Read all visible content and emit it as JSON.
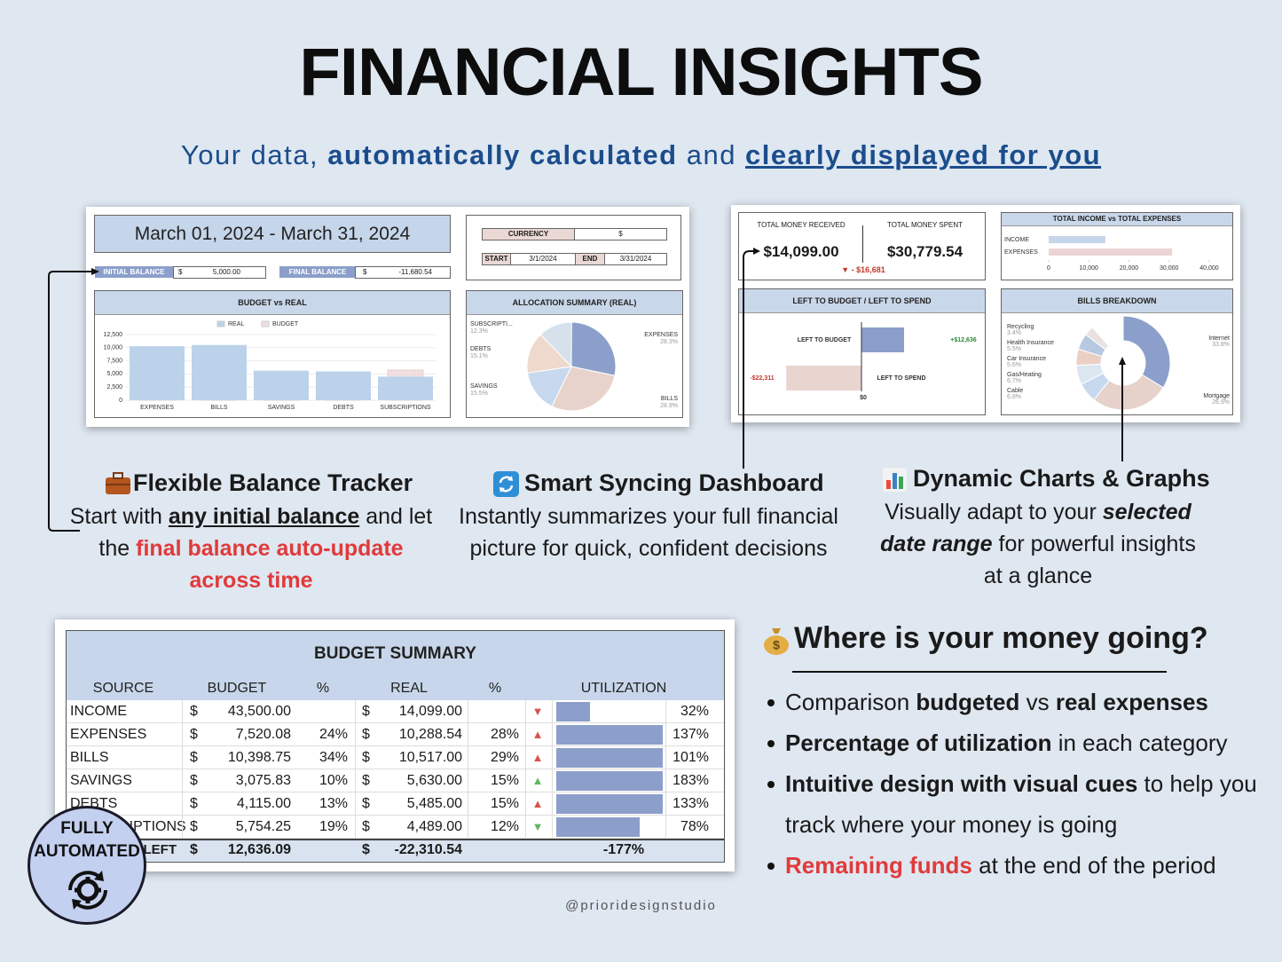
{
  "header": {
    "title": "FINANCIAL INSIGHTS",
    "subtitle": [
      {
        "text": "Your data, ",
        "style": "plain"
      },
      {
        "text": "automatically calculated",
        "style": "bold"
      },
      {
        "text": " and ",
        "style": "plain"
      },
      {
        "text": "clearly displayed for you",
        "style": "bold-underline"
      }
    ]
  },
  "dashboard_left": {
    "date_range": "March 01, 2024 - March 31, 2024",
    "currency_label": "CURRENCY",
    "currency": "$",
    "start_label": "START",
    "start": "3/1/2024",
    "end_label": "END",
    "end": "3/31/2024",
    "initial_balance_label": "INITIAL BALANCE",
    "initial_balance_currency": "$",
    "initial_balance": "5,000.00",
    "final_balance_label": "FINAL BALANCE",
    "final_balance_currency": "$",
    "final_balance": "-11,680.54",
    "budget_chart": {
      "type": "bar",
      "title": "BUDGET vs REAL",
      "categories": [
        "EXPENSES",
        "BILLS",
        "SAVINGS",
        "DEBTS",
        "SUBSCRIPTIONS"
      ],
      "series": [
        {
          "name": "REAL",
          "color": "#bcd2ea",
          "values": [
            10288.54,
            10517,
            5630,
            5485,
            4489
          ]
        },
        {
          "name": "BUDGET",
          "color": "#f1dfdf",
          "values": [
            7520.08,
            10398.75,
            3075.83,
            4115,
            5754.25
          ]
        }
      ],
      "ylim": [
        0,
        12500
      ],
      "yticks": [
        0,
        {
          "value": 2500,
          "label": "2,500"
        },
        {
          "value": 5000,
          "label": "5,000"
        },
        {
          "value": 7500,
          "label": "7,500"
        },
        {
          "value": 10000,
          "label": "10,000"
        },
        {
          "value": 12500,
          "label": "12,500"
        }
      ]
    },
    "allocation_chart": {
      "type": "pie",
      "title": "ALLOCATION SUMMARY (REAL)",
      "categories": [
        "EXPENSES",
        "BILLS",
        "SAVINGS",
        "DEBTS",
        "SUBSCRIPTI..."
      ],
      "values": [
        28.3,
        28.9,
        15.5,
        15.1,
        12.3
      ],
      "value_labels": [
        "28.3%",
        "28.9%",
        "15.5%",
        "15.1%",
        "12.3%"
      ],
      "colors": [
        "#8b9fca",
        "#e8d3cc",
        "#c8d9ef",
        "#efd8cc",
        "#d6e1ec"
      ]
    }
  },
  "dashboard_right": {
    "received_label": "TOTAL MONEY RECEIVED",
    "received": "$14,099.00",
    "spent_label": "TOTAL MONEY SPENT",
    "spent": "$30,779.54",
    "difference": "▼ - $16,681",
    "income_chart": {
      "type": "hbar",
      "title": "TOTAL INCOME vs TOTAL EXPENSES",
      "categories": [
        "INCOME",
        "EXPENSES"
      ],
      "values": [
        14099,
        30779.54
      ],
      "colors": [
        "#c5d5ea",
        "#ecd4d4"
      ],
      "xlim": [
        0,
        40000
      ],
      "xticks": [
        0,
        {
          "value": 10000,
          "label": "10,000"
        },
        {
          "value": 20000,
          "label": "20,000"
        },
        {
          "value": 30000,
          "label": "30,000"
        },
        {
          "value": 40000,
          "label": "40,000"
        }
      ]
    },
    "left_chart": {
      "type": "diverging",
      "title": "LEFT TO BUDGET / LEFT TO SPEND",
      "categories": [
        "LEFT TO BUDGET",
        "LEFT TO SPEND"
      ],
      "values": [
        12636,
        -22311
      ],
      "value_labels": [
        "+$12,636",
        "-$22,311"
      ],
      "colors": [
        "#8b9fca",
        "#e8d5d0"
      ],
      "label_colors": [
        "#2e8b3a",
        "#c0392b"
      ],
      "xlim": [
        -25000,
        15000
      ],
      "xticks": [
        {
          "value": 0,
          "label": "$0"
        }
      ]
    },
    "bills_chart": {
      "type": "donut",
      "title": "BILLS BREAKDOWN",
      "categories": [
        "Internet",
        "Mortgage",
        "Cable",
        "Gas/Heating",
        "Car Insurance",
        "Health Insurance",
        "Recycling"
      ],
      "values": [
        33.8,
        26.9,
        6.8,
        6.7,
        5.6,
        5.5,
        3.4
      ],
      "value_labels": [
        "33.8%",
        "26.9%",
        "6.8%",
        "6.7%",
        "5.6%",
        "5.5%",
        "3.4%"
      ],
      "colors": [
        "#8b9fca",
        "#e6d2cb",
        "#c8d9ef",
        "#dce6f1",
        "#eccfc4",
        "#b7c8e3",
        "#e9e2e0"
      ]
    }
  },
  "features": [
    {
      "title": "Flexible Balance Tracker",
      "body": [
        {
          "text": "Start with ",
          "style": "plain"
        },
        {
          "text": "any initial balance",
          "style": "bold-underline"
        },
        {
          "text": " and let the ",
          "style": "plain"
        },
        {
          "text": "final balance auto-update across time",
          "style": "red"
        }
      ]
    },
    {
      "title": "Smart Syncing Dashboard",
      "body": [
        {
          "text": "Instantly summarizes your full financial picture for quick, confident decisions",
          "style": "plain"
        }
      ]
    },
    {
      "title": "Dynamic Charts & Graphs",
      "body": [
        {
          "text": "Visually adapt to your ",
          "style": "plain"
        },
        {
          "text": "selected date range",
          "style": "bold-italic"
        },
        {
          "text": " for powerful insights at a glance",
          "style": "plain"
        }
      ]
    }
  ],
  "budget_summary": {
    "title": "BUDGET SUMMARY",
    "headers": [
      "SOURCE",
      "BUDGET",
      "%",
      "REAL",
      "%",
      "UTILIZATION"
    ],
    "rows": [
      {
        "source": "INCOME",
        "budget_currency": "$",
        "budget": "43,500.00",
        "real_currency": "$",
        "real": "14,099.00",
        "indicator": "▼",
        "indicator_color": "#d9534f",
        "utilization": 32,
        "utilization_label": "32%"
      },
      {
        "source": "EXPENSES",
        "budget_currency": "$",
        "budget": "7,520.08",
        "budget_pct": "24%",
        "real_currency": "$",
        "real": "10,288.54",
        "real_pct": "28%",
        "indicator": "▲",
        "indicator_color": "#d9534f",
        "utilization": 137,
        "utilization_label": "137%"
      },
      {
        "source": "BILLS",
        "budget_currency": "$",
        "budget": "10,398.75",
        "budget_pct": "34%",
        "real_currency": "$",
        "real": "10,517.00",
        "real_pct": "29%",
        "indicator": "▲",
        "indicator_color": "#d9534f",
        "utilization": 101,
        "utilization_label": "101%"
      },
      {
        "source": "SAVINGS",
        "budget_currency": "$",
        "budget": "3,075.83",
        "budget_pct": "10%",
        "real_currency": "$",
        "real": "5,630.00",
        "real_pct": "15%",
        "indicator": "▲",
        "indicator_color": "#5cb85c",
        "utilization": 183,
        "utilization_label": "183%"
      },
      {
        "source": "DEBTS",
        "budget_currency": "$",
        "budget": "4,115.00",
        "budget_pct": "13%",
        "real_currency": "$",
        "real": "5,485.00",
        "real_pct": "15%",
        "indicator": "▲",
        "indicator_color": "#d9534f",
        "utilization": 133,
        "utilization_label": "133%"
      },
      {
        "source": "SUBSCRIPTIONS",
        "budget_currency": "$",
        "budget": "5,754.25",
        "budget_pct": "19%",
        "real_currency": "$",
        "real": "4,489.00",
        "real_pct": "12%",
        "indicator": "▼",
        "indicator_color": "#5cb85c",
        "utilization": 78,
        "utilization_label": "78%"
      }
    ],
    "total": {
      "source": "LEFT",
      "budget_currency": "$",
      "budget": "12,636.09",
      "real_currency": "$",
      "real": "-22,310.54",
      "utilization_label": "-177%"
    },
    "bar_color": "#8b9fca"
  },
  "money_section": {
    "heading": "Where is your money going?",
    "bullets": [
      [
        {
          "text": "Comparison ",
          "style": "plain"
        },
        {
          "text": "budgeted",
          "style": "bold"
        },
        {
          "text": " vs ",
          "style": "plain"
        },
        {
          "text": "real expenses",
          "style": "bold"
        }
      ],
      [
        {
          "text": "Percentage of utilization",
          "style": "bold"
        },
        {
          "text": " in each category",
          "style": "plain"
        }
      ],
      [
        {
          "text": "Intuitive design with visual cues",
          "style": "bold"
        },
        {
          "text": " to help you track where your money is going",
          "style": "plain"
        }
      ],
      [
        {
          "text": "Remaining funds",
          "style": "red"
        },
        {
          "text": " at the end of the period",
          "style": "plain"
        }
      ]
    ]
  },
  "badge": [
    "FULLY",
    "AUTOMATED"
  ],
  "footer": "@prioridesignstudio"
}
